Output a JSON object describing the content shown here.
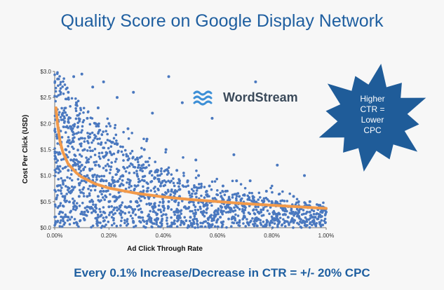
{
  "slide": {
    "title": "Quality Score on Google Display Network",
    "footer": "Every 0.1% Increase/Decrease in CTR = +/- 20% CPC"
  },
  "logo": {
    "text": "WordStream",
    "icon": "wave-icon"
  },
  "callout": {
    "lines": [
      "Higher",
      "CTR =",
      "Lower",
      "CPC"
    ],
    "fill_color": "#1f5c99"
  },
  "colors": {
    "points": "#4a78bf",
    "trend": "#f29a4a",
    "title": "#1f5fa0"
  },
  "chart_data": {
    "type": "scatter",
    "title": "",
    "xlabel": "Ad Click Through Rate",
    "ylabel": "Cost Per Click (USD)",
    "xlim": [
      0,
      1.0
    ],
    "ylim": [
      0,
      3.0
    ],
    "x_ticks": [
      "0.00%",
      "0.20%",
      "0.40%",
      "0.60%",
      "0.80%",
      "1.00%"
    ],
    "x_tick_values": [
      0,
      0.2,
      0.4,
      0.6,
      0.8,
      1.0
    ],
    "y_ticks": [
      "$0.0",
      "$0.5",
      "$1.0",
      "$1.5",
      "$2.0",
      "$2.5",
      "$3.0"
    ],
    "y_tick_values": [
      0,
      0.5,
      1.0,
      1.5,
      2.0,
      2.5,
      3.0
    ],
    "grid": false,
    "series": [
      {
        "kind": "points",
        "x": [
          0.01,
          0.02,
          0.02,
          0.03,
          0.03,
          0.04,
          0.04,
          0.05,
          0.05,
          0.06,
          0.06,
          0.07,
          0.07,
          0.08,
          0.08,
          0.09,
          0.09,
          0.1,
          0.1,
          0.11,
          0.11,
          0.12,
          0.12,
          0.13,
          0.13,
          0.14,
          0.14,
          0.15,
          0.15,
          0.16,
          0.16,
          0.17,
          0.17,
          0.18,
          0.18,
          0.19,
          0.19,
          0.2,
          0.2,
          0.21,
          0.22,
          0.23,
          0.24,
          0.25,
          0.26,
          0.27,
          0.28,
          0.29,
          0.3,
          0.31,
          0.32,
          0.33,
          0.34,
          0.35,
          0.36,
          0.37,
          0.38,
          0.39,
          0.4,
          0.41,
          0.42,
          0.43,
          0.44,
          0.45,
          0.46,
          0.47,
          0.48,
          0.49,
          0.5,
          0.52,
          0.54,
          0.56,
          0.58,
          0.6,
          0.62,
          0.64,
          0.66,
          0.68,
          0.7,
          0.72,
          0.74,
          0.76,
          0.78,
          0.8,
          0.82,
          0.84,
          0.86,
          0.88,
          0.9,
          0.92,
          0.94,
          0.96,
          0.98,
          1.0,
          0.05,
          0.08,
          0.1,
          0.12,
          0.14,
          0.16,
          0.18,
          0.2,
          0.25,
          0.3,
          0.35,
          0.4,
          0.45,
          0.5,
          0.6,
          0.7,
          0.8,
          0.9,
          0.07,
          0.09,
          0.11,
          0.13,
          0.15,
          0.17,
          0.19,
          0.22,
          0.26,
          0.28,
          0.32,
          0.36,
          0.42,
          0.48,
          0.55,
          0.65,
          0.75,
          0.85,
          0.95,
          0.04,
          0.06,
          0.1,
          0.14,
          0.18,
          0.24,
          0.34,
          0.44,
          0.54,
          0.64,
          0.74,
          0.84,
          0.94,
          0.03,
          0.12,
          0.21,
          0.31,
          0.41,
          0.51,
          0.61,
          0.71,
          0.81,
          0.91,
          0.15,
          0.23,
          0.27,
          0.33,
          0.38,
          0.46,
          0.53,
          0.57,
          0.63,
          0.67,
          0.73,
          0.77,
          0.83,
          0.87,
          0.93,
          0.97,
          0.08,
          0.11,
          0.16,
          0.19,
          0.29,
          0.37,
          0.47,
          0.58,
          0.68,
          0.78,
          0.88,
          0.98
        ],
        "y": [
          0.8,
          1.6,
          0.3,
          2.2,
          0.9,
          1.4,
          0.5,
          2.6,
          1.1,
          0.7,
          1.9,
          2.9,
          0.4,
          1.3,
          2.4,
          0.6,
          1.7,
          2.95,
          0.9,
          1.5,
          0.3,
          2.1,
          1.0,
          0.5,
          1.8,
          2.7,
          0.8,
          1.2,
          0.4,
          2.3,
          0.6,
          1.6,
          0.9,
          2.8,
          0.3,
          1.1,
          0.7,
          2.0,
          0.5,
          1.4,
          0.8,
          2.5,
          0.6,
          1.0,
          0.4,
          1.9,
          0.7,
          2.6,
          0.5,
          1.2,
          0.3,
          0.9,
          1.7,
          0.6,
          2.2,
          0.4,
          1.0,
          0.8,
          0.5,
          1.5,
          2.9,
          0.7,
          0.3,
          1.1,
          0.6,
          2.4,
          0.4,
          0.9,
          0.5,
          1.3,
          0.3,
          0.7,
          2.1,
          0.5,
          0.8,
          0.3,
          1.4,
          0.6,
          0.4,
          0.9,
          2.8,
          0.3,
          0.7,
          0.5,
          1.2,
          0.4,
          0.2,
          0.6,
          0.3,
          1.0,
          0.5,
          0.2,
          0.4,
          0.3,
          0.2,
          0.4,
          0.3,
          0.6,
          0.5,
          0.2,
          0.7,
          0.4,
          0.3,
          0.5,
          0.2,
          0.4,
          0.3,
          0.2,
          0.3,
          0.2,
          0.1,
          0.2,
          1.2,
          1.0,
          0.9,
          1.1,
          0.8,
          0.7,
          0.9,
          0.6,
          0.7,
          0.5,
          0.6,
          0.4,
          0.5,
          0.4,
          0.3,
          0.35,
          0.3,
          0.25,
          0.2,
          1.5,
          1.3,
          1.2,
          1.0,
          0.9,
          0.8,
          0.7,
          0.6,
          0.5,
          0.45,
          0.4,
          0.35,
          0.3,
          0.6,
          0.4,
          0.3,
          0.2,
          0.25,
          0.15,
          0.2,
          0.1,
          0.15,
          0.1,
          2.0,
          1.6,
          1.3,
          1.5,
          1.1,
          0.9,
          1.0,
          0.8,
          0.7,
          0.9,
          0.6,
          0.5,
          0.45,
          0.4,
          0.3,
          0.35,
          0.1,
          0.15,
          0.1,
          0.2,
          0.1,
          0.15,
          0.1,
          0.05,
          0.1,
          0.05,
          0.1,
          0.05
        ]
      },
      {
        "kind": "trendline",
        "x": [
          0.005,
          0.01,
          0.02,
          0.03,
          0.05,
          0.08,
          0.1,
          0.15,
          0.2,
          0.3,
          0.4,
          0.5,
          0.6,
          0.7,
          0.8,
          0.9,
          1.0
        ],
        "y": [
          2.3,
          2.0,
          1.65,
          1.45,
          1.22,
          1.05,
          0.97,
          0.84,
          0.76,
          0.66,
          0.59,
          0.54,
          0.5,
          0.46,
          0.43,
          0.4,
          0.37
        ]
      }
    ]
  }
}
